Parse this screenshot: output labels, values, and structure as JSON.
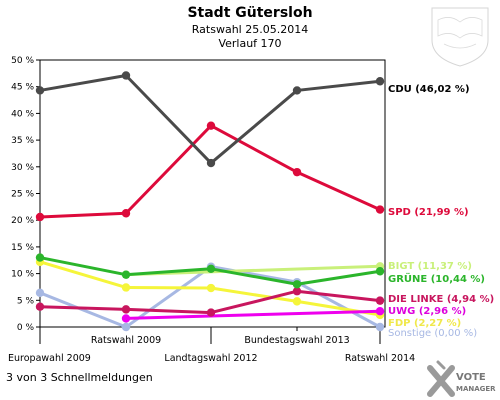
{
  "header": {
    "title": "Stadt Gütersloh",
    "subtitle": "Ratswahl 25.05.2014",
    "subtitle2": "Verlauf 170"
  },
  "footer": {
    "text": "3 von 3 Schnellmeldungen"
  },
  "brand": {
    "line1": "VOTE",
    "line2": "MANAGER"
  },
  "chart_data": {
    "type": "line",
    "title": "Stadt Gütersloh",
    "subtitle": "Ratswahl 25.05.2014 — Verlauf 170",
    "xlabel": "",
    "ylabel": "",
    "x": [
      "Europawahl 2009",
      "Ratswahl 2009",
      "Landtagswahl 2012",
      "Bundestagswahl 2013",
      "Ratswahl 2014"
    ],
    "ylim": [
      0,
      50
    ],
    "yticks": [
      0,
      5,
      10,
      15,
      20,
      25,
      30,
      35,
      40,
      45,
      50
    ],
    "ytick_labels": [
      "0 %",
      "5 %",
      "10 %",
      "15 %",
      "20 %",
      "25 %",
      "30 %",
      "35 %",
      "40 %",
      "45 %",
      "50 %"
    ],
    "grid": false,
    "series": [
      {
        "name": "CDU",
        "label": "CDU (46,02 %)",
        "color": "#4a4a4a",
        "label_color": "#000000",
        "values": [
          44.3,
          47.1,
          30.7,
          44.3,
          46.02
        ]
      },
      {
        "name": "SPD",
        "label": "SPD (21,99 %)",
        "color": "#dd0a3b",
        "label_color": "#dd0a3b",
        "values": [
          20.6,
          21.3,
          37.7,
          29.0,
          21.99
        ]
      },
      {
        "name": "BIGT",
        "label": "BIGT (11,37 %)",
        "color": "#c9f07a",
        "label_color": "#c9f07a",
        "values": [
          null,
          9.8,
          null,
          null,
          11.37
        ]
      },
      {
        "name": "GRÜNE",
        "label": "GRÜNE (10,44 %)",
        "color": "#2bb52b",
        "label_color": "#2bb52b",
        "values": [
          13.0,
          9.8,
          10.9,
          8.0,
          10.44
        ]
      },
      {
        "name": "DIE LINKE",
        "label": "DIE LINKE (4,94 %)",
        "color": "#c8165e",
        "label_color": "#c8165e",
        "values": [
          3.8,
          3.3,
          2.7,
          6.7,
          4.94
        ]
      },
      {
        "name": "UWG",
        "label": "UWG (2,96 %)",
        "color": "#ee00ee",
        "label_color": "#dd00dd",
        "values": [
          null,
          1.6,
          null,
          null,
          2.96
        ]
      },
      {
        "name": "FDP",
        "label": "FDP (2,27 %)",
        "color": "#f5f53a",
        "label_color": "#f0e84a",
        "values": [
          12.2,
          7.4,
          7.3,
          4.8,
          2.27
        ]
      },
      {
        "name": "Sonstige",
        "label": "Sonstige (0,00 %)",
        "color": "#a7b8e3",
        "label_color": "#a7b8e3",
        "values": [
          6.4,
          0.0,
          11.3,
          8.4,
          0.0
        ]
      }
    ]
  }
}
